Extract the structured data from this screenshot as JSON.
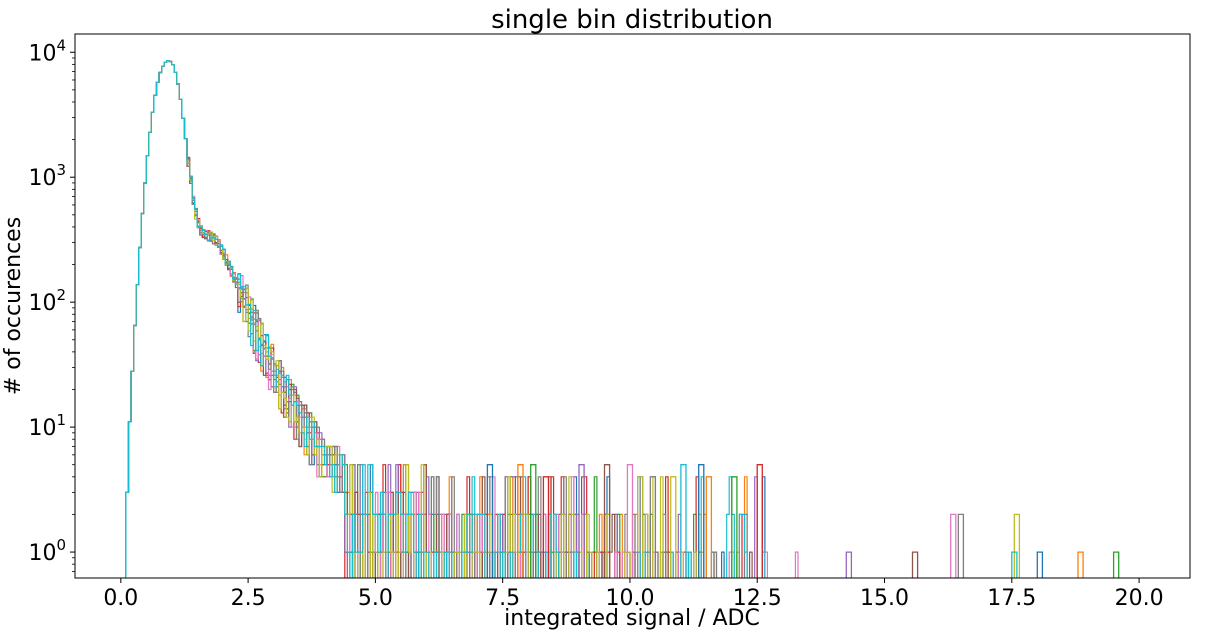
{
  "chart_data": {
    "type": "line",
    "title": "single bin distribution",
    "xlabel": "integrated signal / ADC",
    "ylabel": "# of occurences",
    "xlim": [
      -0.9,
      21.0
    ],
    "ylim": [
      0.62,
      14000
    ],
    "yscale": "log",
    "grid": false,
    "legend": "none",
    "x_ticks": [
      {
        "value": 0.0,
        "label": "0.0"
      },
      {
        "value": 2.5,
        "label": "2.5"
      },
      {
        "value": 5.0,
        "label": "5.0"
      },
      {
        "value": 7.5,
        "label": "7.5"
      },
      {
        "value": 10.0,
        "label": "10.0"
      },
      {
        "value": 12.5,
        "label": "12.5"
      },
      {
        "value": 15.0,
        "label": "15.0"
      },
      {
        "value": 17.5,
        "label": "17.5"
      },
      {
        "value": 20.0,
        "label": "20.0"
      }
    ],
    "y_ticks": [
      {
        "value": 1,
        "base": "10",
        "exp": "0"
      },
      {
        "value": 10,
        "base": "10",
        "exp": "1"
      },
      {
        "value": 100,
        "base": "10",
        "exp": "2"
      },
      {
        "value": 1000,
        "base": "10",
        "exp": "3"
      },
      {
        "value": 10000,
        "base": "10",
        "exp": "4"
      }
    ],
    "histogram_style": "step",
    "series_colors": [
      "#1f77b4",
      "#ff7f0e",
      "#2ca02c",
      "#d62728",
      "#9467bd",
      "#8c564b",
      "#e377c2",
      "#7f7f7f",
      "#bcbd22",
      "#17becf"
    ],
    "envelope": {
      "x": [
        0.12,
        0.18,
        0.25,
        0.35,
        0.45,
        0.55,
        0.65,
        0.75,
        0.85,
        0.95,
        1.05,
        1.15,
        1.25,
        1.35,
        1.45,
        1.55,
        1.65,
        1.75,
        1.85,
        1.95,
        2.05,
        2.2,
        2.35,
        2.5,
        2.65,
        2.8,
        3.0,
        3.2,
        3.4,
        3.6,
        3.8,
        4.0,
        4.2,
        4.4
      ],
      "y": [
        3,
        12,
        45,
        200,
        700,
        1900,
        4000,
        6500,
        8200,
        8700,
        7700,
        5000,
        2500,
        1100,
        560,
        390,
        350,
        340,
        320,
        280,
        230,
        170,
        120,
        90,
        65,
        45,
        30,
        21,
        15,
        11,
        8,
        6,
        5,
        4
      ]
    },
    "tail_spikes": [
      {
        "x": 7.2,
        "y": 5
      },
      {
        "x": 7.8,
        "y": 5
      },
      {
        "x": 8.05,
        "y": 5
      },
      {
        "x": 8.3,
        "y": 4
      },
      {
        "x": 9.0,
        "y": 5
      },
      {
        "x": 9.5,
        "y": 5
      },
      {
        "x": 9.95,
        "y": 5
      },
      {
        "x": 10.4,
        "y": 4
      },
      {
        "x": 10.8,
        "y": 4
      },
      {
        "x": 11.0,
        "y": 5
      },
      {
        "x": 11.35,
        "y": 5
      },
      {
        "x": 11.5,
        "y": 4
      },
      {
        "x": 12.0,
        "y": 4
      },
      {
        "x": 12.5,
        "y": 5
      },
      {
        "x": 14.25,
        "y": 1
      },
      {
        "x": 15.55,
        "y": 1
      },
      {
        "x": 16.3,
        "y": 2
      },
      {
        "x": 16.45,
        "y": 2
      },
      {
        "x": 17.55,
        "y": 2
      },
      {
        "x": 17.5,
        "y": 1
      },
      {
        "x": 18.0,
        "y": 1
      },
      {
        "x": 18.8,
        "y": 1
      },
      {
        "x": 19.5,
        "y": 1
      }
    ]
  }
}
